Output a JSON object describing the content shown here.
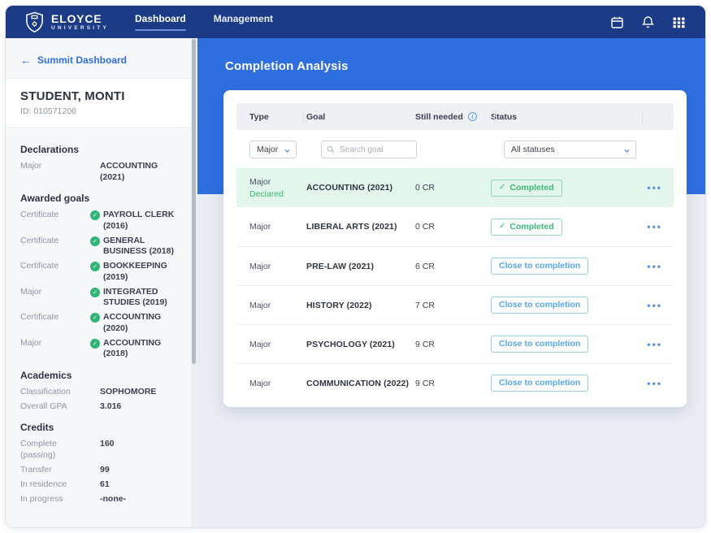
{
  "navbar": {
    "brand": {
      "name": "ELOYCE",
      "subtitle": "UNIVERSITY"
    },
    "tabs": [
      {
        "label": "Dashboard",
        "active": true
      },
      {
        "label": "Management",
        "active": false
      }
    ],
    "icons": [
      "calendar-icon",
      "bell-icon",
      "apps-grid-icon"
    ]
  },
  "sidebar": {
    "back_link": "Summit Dashboard",
    "student": {
      "name": "STUDENT, MONTI",
      "id_label": "ID: 010571206"
    },
    "sections": [
      {
        "title": "Declarations",
        "rows": [
          {
            "label": "Major",
            "value": "ACCOUNTING (2021)",
            "check": false
          }
        ]
      },
      {
        "title": "Awarded goals",
        "rows": [
          {
            "label": "Certificate",
            "value": "PAYROLL CLERK (2016)",
            "check": true
          },
          {
            "label": "Certificate",
            "value": "GENERAL BUSINESS (2018)",
            "check": true
          },
          {
            "label": "Certificate",
            "value": "BOOKKEEPING (2019)",
            "check": true
          },
          {
            "label": "Major",
            "value": "INTEGRATED STUDIES (2019)",
            "check": true
          },
          {
            "label": "Certificate",
            "value": "ACCOUNTING (2020)",
            "check": true
          },
          {
            "label": "Major",
            "value": "ACCOUNTING (2018)",
            "check": true
          }
        ]
      },
      {
        "title": "Academics",
        "rows": [
          {
            "label": "Classification",
            "value": "SOPHOMORE",
            "check": false
          },
          {
            "label": "Overall GPA",
            "value": "3.016",
            "check": false
          }
        ]
      },
      {
        "title": "Credits",
        "rows": [
          {
            "label": "Complete (passing)",
            "value": "160",
            "check": false
          },
          {
            "label": "Transfer",
            "value": "99",
            "check": false
          },
          {
            "label": "In residence",
            "value": "61",
            "check": false
          },
          {
            "label": "In progress",
            "value": "-none-",
            "check": false
          }
        ]
      }
    ]
  },
  "main": {
    "title": "Completion Analysis",
    "table": {
      "columns": [
        "Type",
        "Goal",
        "Still needed",
        "Status"
      ],
      "filters": {
        "type_select": "Major",
        "search_placeholder": "Search goal",
        "status_select": "All statuses"
      },
      "rows": [
        {
          "type": "Major",
          "declared": "Declared",
          "goal": "ACCOUNTING (2021)",
          "still_needed": "0 CR",
          "status": "Completed",
          "status_kind": "completed",
          "highlighted": true
        },
        {
          "type": "Major",
          "declared": "",
          "goal": "LIBERAL ARTS (2021)",
          "still_needed": "0 CR",
          "status": "Completed",
          "status_kind": "completed",
          "highlighted": false
        },
        {
          "type": "Major",
          "declared": "",
          "goal": "PRE-LAW (2021)",
          "still_needed": "6 CR",
          "status": "Close to completion",
          "status_kind": "close",
          "highlighted": false
        },
        {
          "type": "Major",
          "declared": "",
          "goal": "HISTORY (2022)",
          "still_needed": "7 CR",
          "status": "Close to completion",
          "status_kind": "close",
          "highlighted": false
        },
        {
          "type": "Major",
          "declared": "",
          "goal": "PSYCHOLOGY (2021)",
          "still_needed": "9 CR",
          "status": "Close to completion",
          "status_kind": "close",
          "highlighted": false
        },
        {
          "type": "Major",
          "declared": "",
          "goal": "COMMUNICATION (2022)",
          "still_needed": "9 CR",
          "status": "Close to completion",
          "status_kind": "close",
          "highlighted": false
        }
      ]
    }
  },
  "colors": {
    "navbar_bg": "#1c3b86",
    "primary_blue": "#2e6fe0",
    "page_bg": "#e9ecf3",
    "sidebar_bg": "#f6f7f9",
    "success_green": "#2fb576",
    "highlight_row_green": "#e3f6eb",
    "completed_badge_text": "#3cb878",
    "close_badge_text": "#56a5e9",
    "link_blue": "#2f6fe0"
  }
}
